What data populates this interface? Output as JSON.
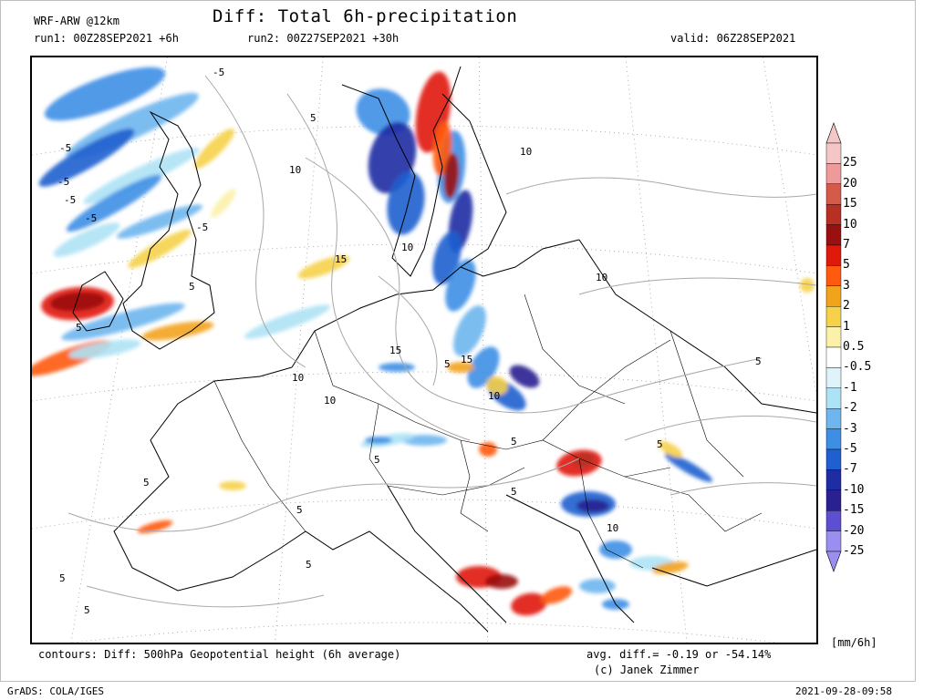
{
  "header": {
    "model": "WRF-ARW @12km",
    "title": "Diff: Total 6h-precipitation",
    "run1": "run1: 00Z28SEP2021 +6h",
    "run2": "run2: 00Z27SEP2021 +30h",
    "valid": "valid: 06Z28SEP2021"
  },
  "legend": {
    "unit": "[mm/6h]",
    "bins": [
      {
        "label": "25",
        "color": "#f4c6c6"
      },
      {
        "label": "20",
        "color": "#ef9a9a"
      },
      {
        "label": "15",
        "color": "#d65a4a"
      },
      {
        "label": "10",
        "color": "#b83024"
      },
      {
        "label": "7",
        "color": "#9a1010"
      },
      {
        "label": "5",
        "color": "#e01a0a"
      },
      {
        "label": "3",
        "color": "#ff5a10"
      },
      {
        "label": "2",
        "color": "#f2a31c"
      },
      {
        "label": "1",
        "color": "#f6d24a"
      },
      {
        "label": "0.5",
        "color": "#fbf1a8"
      },
      {
        "label": "-0.5",
        "color": "#ffffff"
      },
      {
        "label": "-1",
        "color": "#dff3fb"
      },
      {
        "label": "-2",
        "color": "#aee2f5"
      },
      {
        "label": "-3",
        "color": "#6fb6ee"
      },
      {
        "label": "-5",
        "color": "#3d8fe6"
      },
      {
        "label": "-7",
        "color": "#1f5fcf"
      },
      {
        "label": "-10",
        "color": "#1e2da4"
      },
      {
        "label": "-15",
        "color": "#2a2090"
      },
      {
        "label": "-20",
        "color": "#5c4fd0"
      },
      {
        "label": "-25",
        "color": "#9a8ff0"
      }
    ]
  },
  "map": {
    "contour_labels": [
      "-5",
      "-5",
      "-5",
      "-5",
      "-5",
      "-5",
      "5",
      "5",
      "5",
      "5",
      "5",
      "5",
      "5",
      "5",
      "5",
      "5",
      "5",
      "5",
      "5",
      "5",
      "10",
      "10",
      "10",
      "10",
      "10",
      "10",
      "10",
      "10",
      "15",
      "15",
      "15"
    ]
  },
  "footer": {
    "contours": "contours: Diff: 500hPa Geopotential height (6h average)",
    "avg": "avg. diff.= -0.19  or -54.14%",
    "credit": "(c) Janek Zimmer",
    "grads": "GrADS: COLA/IGES",
    "timestamp": "2021-09-28-09:58"
  }
}
